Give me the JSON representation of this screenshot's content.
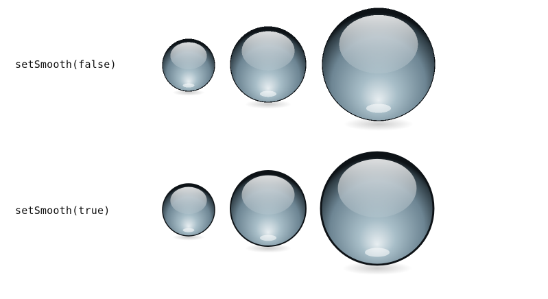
{
  "rows": [
    {
      "label": "setSmooth(false)",
      "smooth": false,
      "sphere_count": 3
    },
    {
      "label": "setSmooth(true)",
      "smooth": true,
      "sphere_count": 3
    }
  ],
  "colors": {
    "background": "#ffffff",
    "sphere_edge": "#0d1216",
    "sphere_dark": "#2f3d45",
    "sphere_mid": "#6d8593",
    "sphere_light": "#a8bec8",
    "highlight": "#e8eef1",
    "shadow": "#c8c8c8"
  }
}
